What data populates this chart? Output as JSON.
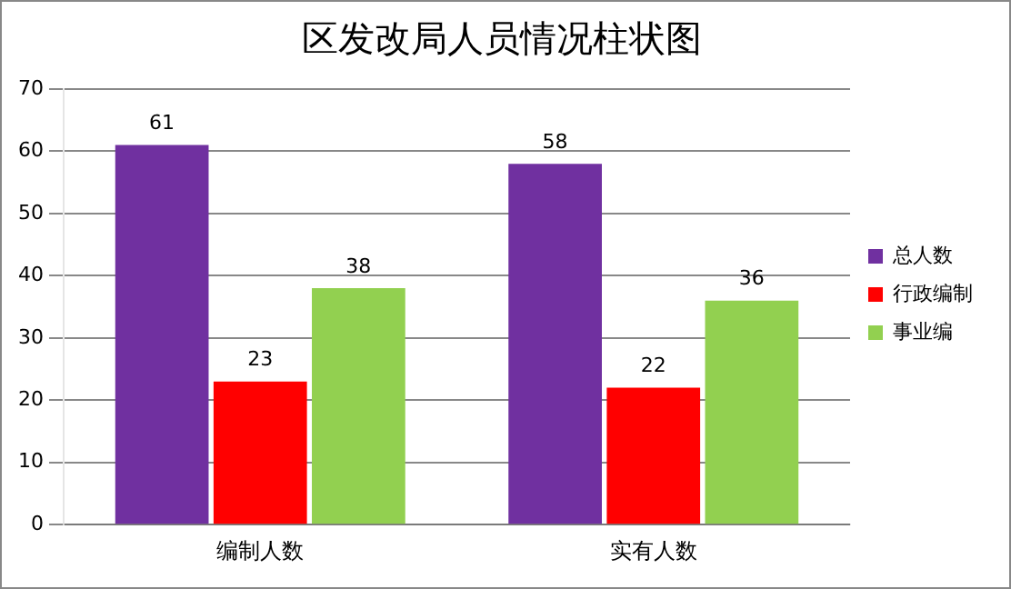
{
  "chart_data": {
    "type": "bar",
    "title": "区发改局人员情况柱状图",
    "categories": [
      "编制人数",
      "实有人数"
    ],
    "series": [
      {
        "name": "总人数",
        "color": "#7030a0",
        "values": [
          61,
          58
        ]
      },
      {
        "name": "行政编制",
        "color": "#ff0000",
        "values": [
          23,
          22
        ]
      },
      {
        "name": "事业编",
        "color": "#92d050",
        "values": [
          38,
          36
        ]
      }
    ],
    "ylim": [
      0,
      70
    ],
    "yticks": [
      0,
      10,
      20,
      30,
      40,
      50,
      60,
      70
    ],
    "grid": "y",
    "legend": "right",
    "data_labels": true
  }
}
